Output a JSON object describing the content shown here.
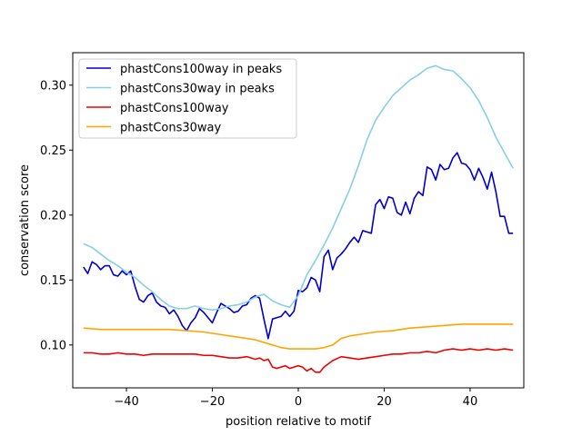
{
  "chart_data": {
    "type": "line",
    "xlabel": "position relative to motif",
    "ylabel": "conservation score",
    "xlim": [
      -52.5,
      52.5
    ],
    "ylim": [
      0.067,
      0.325
    ],
    "xticks": [
      -40,
      -20,
      0,
      20,
      40
    ],
    "yticks": [
      0.1,
      0.15,
      0.2,
      0.25,
      0.3
    ],
    "xtick_labels": [
      "−40",
      "−20",
      "0",
      "20",
      "40"
    ],
    "ytick_labels": [
      "0.10",
      "0.15",
      "0.20",
      "0.25",
      "0.30"
    ],
    "grid": false,
    "legend_position": "upper-left",
    "series": [
      {
        "name": "phastCons100way in peaks",
        "color": "#0000cc",
        "x": [
          -50,
          -49,
          -48,
          -47,
          -46,
          -45,
          -44,
          -43,
          -42,
          -41,
          -40,
          -39,
          -38,
          -37,
          -36,
          -35,
          -34,
          -33,
          -32,
          -31,
          -30,
          -29,
          -28,
          -27,
          -26,
          -25,
          -24,
          -23,
          -22,
          -21,
          -20,
          -19,
          -18,
          -17,
          -16,
          -15,
          -14,
          -13,
          -12,
          -11,
          -10,
          -9,
          -8,
          -7,
          -6,
          -5,
          -4,
          -3,
          -2,
          -1,
          0,
          1,
          2,
          3,
          4,
          5,
          6,
          7,
          8,
          9,
          10,
          11,
          12,
          13,
          14,
          15,
          16,
          17,
          18,
          19,
          20,
          21,
          22,
          23,
          24,
          25,
          26,
          27,
          28,
          29,
          30,
          31,
          32,
          33,
          34,
          35,
          36,
          37,
          38,
          39,
          40,
          41,
          42,
          43,
          44,
          45,
          46,
          47,
          48,
          49,
          50
        ],
        "values": [
          0.16,
          0.155,
          0.164,
          0.162,
          0.158,
          0.161,
          0.161,
          0.154,
          0.153,
          0.157,
          0.154,
          0.157,
          0.145,
          0.135,
          0.133,
          0.138,
          0.14,
          0.133,
          0.13,
          0.129,
          0.124,
          0.127,
          0.122,
          0.115,
          0.111,
          0.117,
          0.121,
          0.128,
          0.125,
          0.121,
          0.117,
          0.125,
          0.132,
          0.13,
          0.128,
          0.125,
          0.126,
          0.13,
          0.131,
          0.136,
          0.138,
          0.136,
          0.12,
          0.105,
          0.12,
          0.121,
          0.122,
          0.126,
          0.122,
          0.126,
          0.142,
          0.141,
          0.144,
          0.152,
          0.15,
          0.141,
          0.168,
          0.173,
          0.158,
          0.167,
          0.17,
          0.174,
          0.179,
          0.183,
          0.179,
          0.188,
          0.187,
          0.186,
          0.208,
          0.212,
          0.205,
          0.214,
          0.213,
          0.202,
          0.2,
          0.21,
          0.201,
          0.213,
          0.218,
          0.215,
          0.237,
          0.235,
          0.227,
          0.239,
          0.235,
          0.236,
          0.244,
          0.248,
          0.24,
          0.239,
          0.235,
          0.227,
          0.236,
          0.229,
          0.22,
          0.233,
          0.218,
          0.199,
          0.199,
          0.186,
          0.186
        ]
      },
      {
        "name": "phastCons30way in peaks",
        "color": "#87ceeb",
        "x": [
          -50,
          -48,
          -46,
          -44,
          -42,
          -40,
          -38,
          -36,
          -34,
          -32,
          -30,
          -28,
          -26,
          -24,
          -22,
          -20,
          -18,
          -16,
          -14,
          -12,
          -10,
          -8,
          -6,
          -4,
          -2,
          0,
          2,
          4,
          6,
          8,
          10,
          12,
          14,
          16,
          18,
          20,
          22,
          24,
          26,
          28,
          30,
          32,
          34,
          36,
          38,
          40,
          42,
          44,
          46,
          48,
          50
        ],
        "values": [
          0.178,
          0.175,
          0.17,
          0.165,
          0.161,
          0.156,
          0.152,
          0.146,
          0.141,
          0.135,
          0.13,
          0.128,
          0.128,
          0.13,
          0.128,
          0.127,
          0.128,
          0.13,
          0.131,
          0.133,
          0.137,
          0.139,
          0.134,
          0.131,
          0.129,
          0.138,
          0.154,
          0.165,
          0.177,
          0.19,
          0.205,
          0.22,
          0.238,
          0.258,
          0.273,
          0.283,
          0.292,
          0.298,
          0.304,
          0.308,
          0.313,
          0.315,
          0.312,
          0.311,
          0.305,
          0.298,
          0.288,
          0.275,
          0.26,
          0.248,
          0.236
        ]
      },
      {
        "name": "phastCons100way",
        "color": "#ee0000",
        "x": [
          -50,
          -48,
          -46,
          -44,
          -42,
          -40,
          -38,
          -36,
          -34,
          -32,
          -30,
          -28,
          -26,
          -24,
          -22,
          -20,
          -18,
          -16,
          -14,
          -12,
          -10,
          -9,
          -8,
          -7,
          -6,
          -5,
          -4,
          -3,
          -2,
          -1,
          0,
          1,
          2,
          3,
          4,
          5,
          6,
          8,
          10,
          12,
          14,
          16,
          18,
          20,
          22,
          24,
          26,
          28,
          30,
          32,
          34,
          36,
          38,
          40,
          42,
          44,
          46,
          48,
          50
        ],
        "values": [
          0.094,
          0.094,
          0.093,
          0.093,
          0.094,
          0.093,
          0.093,
          0.092,
          0.093,
          0.093,
          0.093,
          0.093,
          0.093,
          0.093,
          0.092,
          0.092,
          0.091,
          0.09,
          0.09,
          0.091,
          0.089,
          0.09,
          0.088,
          0.089,
          0.083,
          0.082,
          0.083,
          0.084,
          0.082,
          0.083,
          0.084,
          0.083,
          0.08,
          0.082,
          0.079,
          0.079,
          0.083,
          0.088,
          0.091,
          0.09,
          0.089,
          0.09,
          0.091,
          0.092,
          0.093,
          0.093,
          0.094,
          0.094,
          0.095,
          0.094,
          0.096,
          0.097,
          0.096,
          0.097,
          0.096,
          0.097,
          0.096,
          0.097,
          0.096
        ]
      },
      {
        "name": "phastCons30way",
        "color": "#ffa500",
        "x": [
          -50,
          -46,
          -42,
          -38,
          -34,
          -30,
          -26,
          -22,
          -18,
          -14,
          -10,
          -6,
          -4,
          -2,
          0,
          2,
          4,
          6,
          8,
          10,
          12,
          14,
          18,
          22,
          26,
          30,
          34,
          38,
          42,
          46,
          50
        ],
        "values": [
          0.113,
          0.112,
          0.112,
          0.112,
          0.112,
          0.112,
          0.111,
          0.11,
          0.108,
          0.106,
          0.104,
          0.1,
          0.098,
          0.097,
          0.097,
          0.097,
          0.097,
          0.098,
          0.1,
          0.105,
          0.107,
          0.108,
          0.11,
          0.111,
          0.113,
          0.114,
          0.115,
          0.116,
          0.116,
          0.116,
          0.116
        ]
      }
    ]
  }
}
